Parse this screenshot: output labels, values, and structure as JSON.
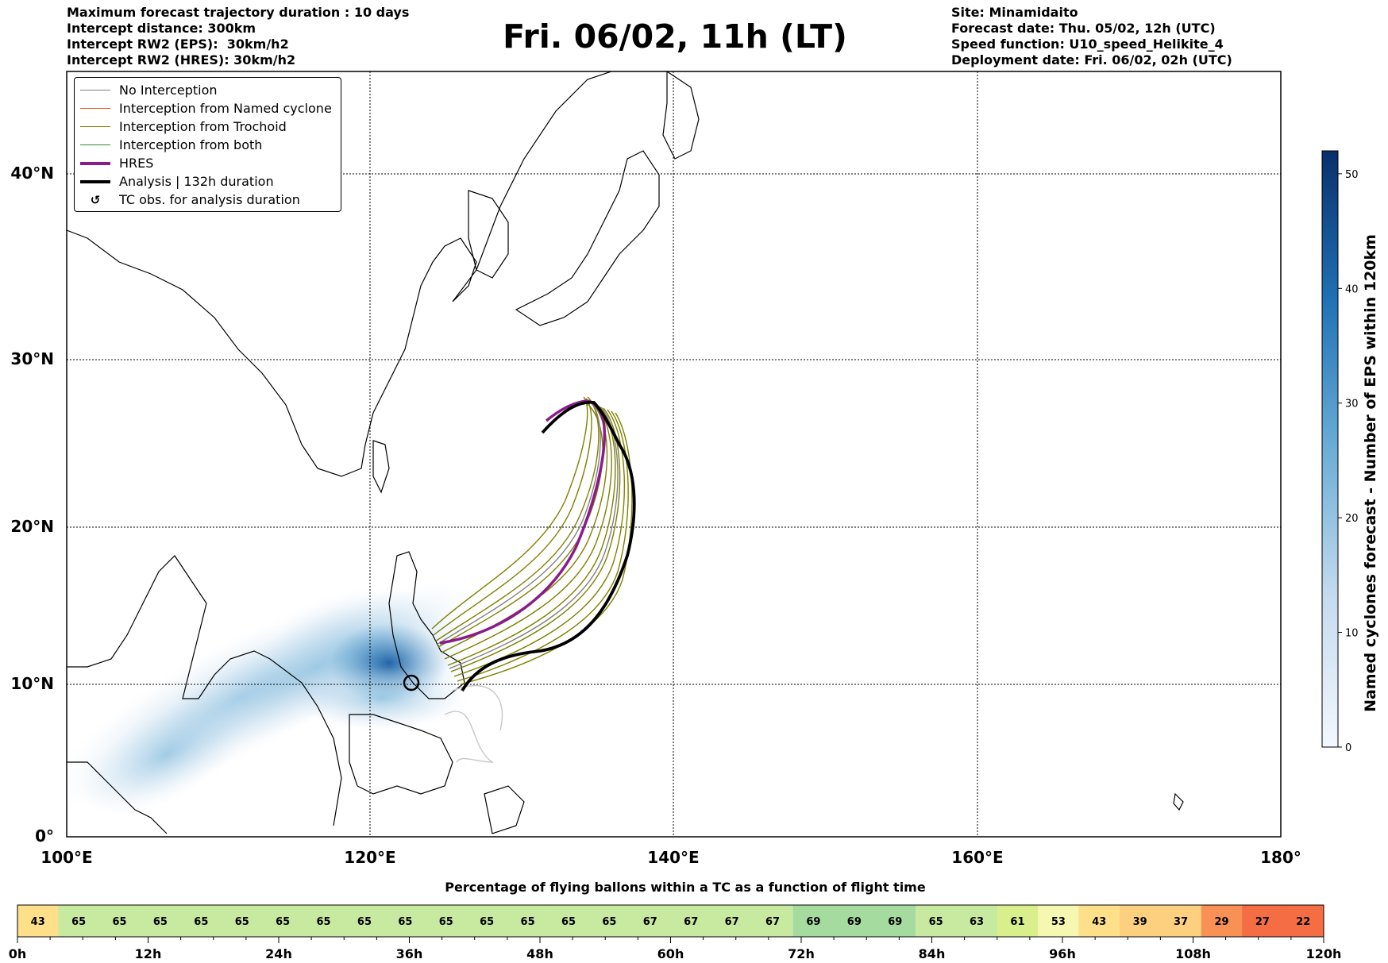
{
  "header": {
    "left_lines": [
      "Maximum forecast trajectory duration : 10 days",
      "Intercept distance: 300km",
      "Intercept RW2 (EPS):  30km/h2",
      "Intercept RW2 (HRES): 30km/h2"
    ],
    "right_lines": [
      "Site: Minamidaito",
      "Forecast date: Thu. 05/02, 12h (UTC)",
      "Speed function: U10_speed_Helikite_4",
      "Deployment date: Fri. 06/02, 02h (UTC)"
    ],
    "title": "Fri. 06/02, 11h (LT)"
  },
  "map": {
    "lon_ticks": [
      "100°E",
      "120°E",
      "140°E",
      "160°E",
      "180°"
    ],
    "lat_ticks": [
      "0°",
      "10°N",
      "20°N",
      "30°N",
      "40°N"
    ],
    "lon_range": [
      100,
      180
    ],
    "lat_range": [
      0,
      45.5
    ]
  },
  "legend": [
    {
      "label": "No Interception",
      "color": "#808080",
      "style": "thin"
    },
    {
      "label": "Interception from Named cyclone",
      "color": "#e8541c",
      "style": "thin"
    },
    {
      "label": "Interception from Trochoid",
      "color": "#808000",
      "style": "thin"
    },
    {
      "label": "Interception from both",
      "color": "#2e8b2e",
      "style": "thin"
    },
    {
      "label": "HRES",
      "color": "#8b1a8b",
      "style": "thick"
    },
    {
      "label": "Analysis | 132h duration",
      "color": "#000000",
      "style": "thick"
    },
    {
      "label": "TC obs. for analysis duration",
      "color": "#000000",
      "style": "symbol"
    }
  ],
  "colorbar": {
    "label": "Named cyclones forecast - Number of EPS within 120km",
    "ticks": [
      "0",
      "10",
      "20",
      "30",
      "40",
      "50"
    ],
    "min": 0,
    "max": 52,
    "color_low": "#eef4fb",
    "color_high": "#08306b"
  },
  "flight": {
    "title": "Percentage of flying ballons within a TC as a function of flight time",
    "hour_labels": [
      "0h",
      "12h",
      "24h",
      "36h",
      "48h",
      "60h",
      "72h",
      "84h",
      "96h",
      "108h",
      "120h"
    ],
    "values": [
      "43",
      "65",
      "65",
      "65",
      "65",
      "65",
      "65",
      "65",
      "65",
      "65",
      "65",
      "65",
      "65",
      "65",
      "65",
      "67",
      "67",
      "67",
      "67",
      "69",
      "69",
      "69",
      "65",
      "63",
      "61",
      "53",
      "43",
      "39",
      "37",
      "29",
      "27",
      "22"
    ],
    "blank_color": "#9e0142"
  }
}
